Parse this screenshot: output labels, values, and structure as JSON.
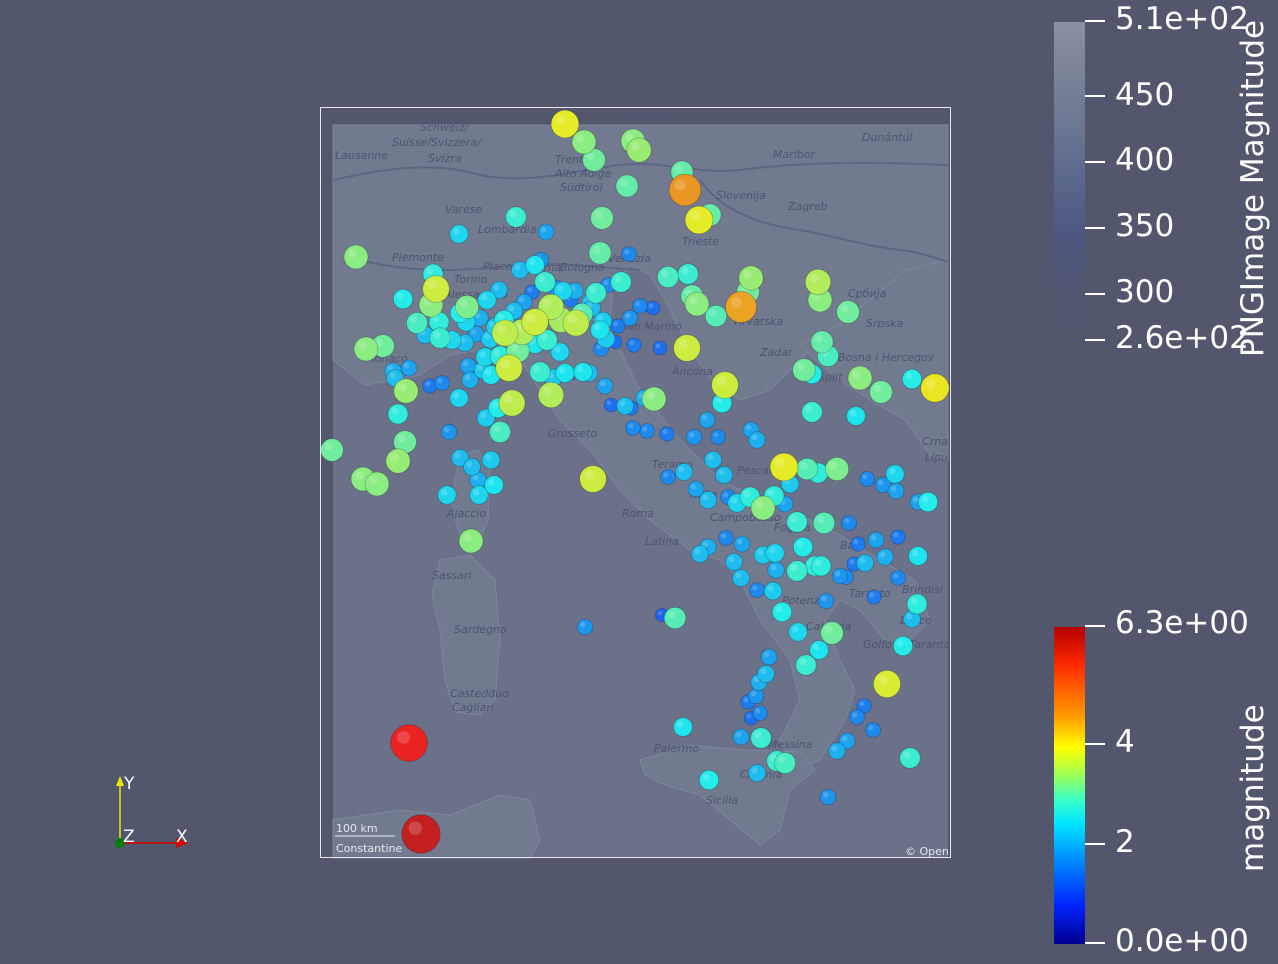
{
  "map": {
    "place_labels": [
      "Schweiz/",
      "Suisse/Svizzera/",
      "Svizra",
      "Lausanne",
      "Trento",
      "Südtirol",
      "Alto Adige",
      "Varese",
      "Lombardia",
      "Piemonte",
      "Torino",
      "Piacenza",
      "Parma",
      "Bologna",
      "Venezia",
      "Trieste",
      "Slovenija",
      "Zagreb",
      "Maribor",
      "Dunántúl",
      "Kärnten",
      "Hrvatska",
      "Monaco",
      "Toscana",
      "Grosseto",
      "Zadar",
      "Split",
      "Bosna i Hercegov",
      "Ancona",
      "Srpska",
      "Србија",
      "Crna",
      "Lipu",
      "Ajaccio",
      "Roma",
      "Latina",
      "Campobasso",
      "Foggia",
      "Bari",
      "Brindisi",
      "Taranto",
      "Lecce",
      "Sassari",
      "Sardegna",
      "Potenza",
      "Calabria",
      "Castedduo",
      "Cagliari",
      "Palermo",
      "Messina",
      "Catania",
      "Sicilia",
      "Golfo di Taranto",
      "Teramo",
      "Italia",
      "Alessandria",
      "San Marino",
      "Pescara"
    ],
    "scale_label": "100 km",
    "attribution_left": "Constantine",
    "attribution_right": "© Open"
  },
  "image_colorbar": {
    "title": "PNGImage Magnitude",
    "ticks": [
      "5.1e+02",
      "450",
      "400",
      "350",
      "300",
      "2.6e+02"
    ]
  },
  "magnitude_colorbar": {
    "title": "magnitude",
    "ticks": [
      "6.3e+00",
      "4",
      "2",
      "0.0e+00"
    ]
  },
  "axes_widget": {
    "x_label": "X",
    "y_label": "Y",
    "z_label": "Z"
  },
  "quakes": [
    [
      565,
      124,
      3.9
    ],
    [
      584,
      142,
      3.2
    ],
    [
      594,
      160,
      3.0
    ],
    [
      633,
      141,
      3.2
    ],
    [
      639,
      150,
      3.3
    ],
    [
      627,
      186,
      2.9
    ],
    [
      682,
      172,
      2.9
    ],
    [
      685,
      190,
      4.6
    ],
    [
      699,
      220,
      3.9
    ],
    [
      710,
      215,
      2.9
    ],
    [
      602,
      218,
      3.0
    ],
    [
      516,
      217,
      2.6
    ],
    [
      546,
      232,
      1.8
    ],
    [
      459,
      234,
      2.2
    ],
    [
      356,
      257,
      3.2
    ],
    [
      600,
      253,
      2.9
    ],
    [
      629,
      254,
      1.6
    ],
    [
      668,
      277,
      2.7
    ],
    [
      688,
      274,
      2.6
    ],
    [
      751,
      278,
      3.3
    ],
    [
      748,
      292,
      3.0
    ],
    [
      818,
      282,
      3.5
    ],
    [
      820,
      300,
      3.2
    ],
    [
      848,
      312,
      3.0
    ],
    [
      741,
      307,
      4.5
    ],
    [
      716,
      316,
      2.8
    ],
    [
      697,
      304,
      3.2
    ],
    [
      692,
      296,
      2.9
    ],
    [
      433,
      274,
      2.5
    ],
    [
      436,
      289,
      3.7
    ],
    [
      431,
      305,
      3.2
    ],
    [
      403,
      299,
      2.4
    ],
    [
      417,
      323,
      2.7
    ],
    [
      439,
      322,
      2.5
    ],
    [
      460,
      313,
      2.4
    ],
    [
      467,
      307,
      3.1
    ],
    [
      487,
      300,
      2.2
    ],
    [
      499,
      290,
      2.0
    ],
    [
      520,
      270,
      2.0
    ],
    [
      535,
      265,
      2.3
    ],
    [
      541,
      260,
      1.7
    ],
    [
      545,
      282,
      2.6
    ],
    [
      563,
      291,
      2.2
    ],
    [
      575,
      291,
      1.9
    ],
    [
      596,
      293,
      2.6
    ],
    [
      621,
      282,
      2.6
    ],
    [
      608,
      285,
      1.6
    ],
    [
      640,
      306,
      1.6
    ],
    [
      653,
      308,
      1.4
    ],
    [
      630,
      318,
      1.7
    ],
    [
      618,
      326,
      1.5
    ],
    [
      603,
      321,
      2.1
    ],
    [
      590,
      303,
      2.0
    ],
    [
      576,
      323,
      3.6
    ],
    [
      561,
      320,
      3.4
    ],
    [
      551,
      307,
      3.5
    ],
    [
      535,
      322,
      3.7
    ],
    [
      522,
      332,
      3.5
    ],
    [
      505,
      333,
      3.6
    ],
    [
      490,
      339,
      2.1
    ],
    [
      476,
      334,
      1.8
    ],
    [
      465,
      343,
      2.0
    ],
    [
      452,
      340,
      2.2
    ],
    [
      440,
      338,
      2.6
    ],
    [
      425,
      335,
      2.0
    ],
    [
      383,
      346,
      3.0
    ],
    [
      366,
      349,
      3.2
    ],
    [
      409,
      368,
      1.8
    ],
    [
      395,
      378,
      2.0
    ],
    [
      393,
      371,
      1.9
    ],
    [
      406,
      391,
      3.3
    ],
    [
      430,
      386,
      1.5
    ],
    [
      442,
      383,
      1.6
    ],
    [
      459,
      398,
      2.2
    ],
    [
      470,
      380,
      1.9
    ],
    [
      483,
      370,
      2.1
    ],
    [
      491,
      375,
      2.3
    ],
    [
      509,
      368,
      3.7
    ],
    [
      512,
      403,
      3.6
    ],
    [
      498,
      408,
      2.4
    ],
    [
      500,
      432,
      2.7
    ],
    [
      486,
      418,
      2.1
    ],
    [
      468,
      366,
      1.8
    ],
    [
      485,
      357,
      2.2
    ],
    [
      500,
      356,
      2.5
    ],
    [
      518,
      351,
      3.0
    ],
    [
      535,
      344,
      2.3
    ],
    [
      547,
      340,
      2.6
    ],
    [
      560,
      352,
      2.2
    ],
    [
      540,
      372,
      2.6
    ],
    [
      553,
      378,
      2.1
    ],
    [
      565,
      373,
      2.3
    ],
    [
      583,
      372,
      2.3
    ],
    [
      551,
      395,
      3.5
    ],
    [
      601,
      349,
      1.6
    ],
    [
      606,
      339,
      2.1
    ],
    [
      600,
      330,
      2.3
    ],
    [
      615,
      342,
      1.4
    ],
    [
      634,
      345,
      1.5
    ],
    [
      660,
      348,
      1.4
    ],
    [
      687,
      348,
      3.7
    ],
    [
      725,
      385,
      3.7
    ],
    [
      722,
      403,
      2.4
    ],
    [
      707,
      420,
      1.8
    ],
    [
      718,
      437,
      1.6
    ],
    [
      757,
      440,
      1.9
    ],
    [
      751,
      430,
      1.8
    ],
    [
      784,
      467,
      3.9
    ],
    [
      807,
      469,
      2.8
    ],
    [
      837,
      469,
      3.1
    ],
    [
      818,
      473,
      2.5
    ],
    [
      804,
      370,
      3.0
    ],
    [
      812,
      374,
      2.4
    ],
    [
      828,
      356,
      2.7
    ],
    [
      822,
      342,
      2.9
    ],
    [
      860,
      378,
      3.2
    ],
    [
      881,
      392,
      3.0
    ],
    [
      912,
      379,
      2.4
    ],
    [
      935,
      388,
      4.0
    ],
    [
      812,
      412,
      2.6
    ],
    [
      856,
      416,
      2.3
    ],
    [
      654,
      399,
      3.2
    ],
    [
      644,
      398,
      1.9
    ],
    [
      631,
      408,
      1.5
    ],
    [
      625,
      406,
      2.0
    ],
    [
      611,
      405,
      1.4
    ],
    [
      605,
      386,
      1.8
    ],
    [
      589,
      373,
      2.0
    ],
    [
      647,
      431,
      1.6
    ],
    [
      633,
      428,
      1.6
    ],
    [
      667,
      434,
      1.5
    ],
    [
      694,
      437,
      1.7
    ],
    [
      713,
      460,
      2.0
    ],
    [
      724,
      475,
      2.0
    ],
    [
      684,
      472,
      2.0
    ],
    [
      668,
      477,
      1.6
    ],
    [
      696,
      489,
      1.8
    ],
    [
      708,
      500,
      2.0
    ],
    [
      728,
      497,
      1.6
    ],
    [
      737,
      503,
      2.2
    ],
    [
      750,
      497,
      2.5
    ],
    [
      763,
      508,
      3.2
    ],
    [
      774,
      496,
      2.5
    ],
    [
      785,
      504,
      1.8
    ],
    [
      797,
      522,
      2.6
    ],
    [
      824,
      523,
      2.8
    ],
    [
      790,
      484,
      2.1
    ],
    [
      803,
      547,
      2.4
    ],
    [
      815,
      566,
      2.5
    ],
    [
      821,
      566,
      2.5
    ],
    [
      797,
      571,
      2.6
    ],
    [
      775,
      553,
      2.2
    ],
    [
      776,
      570,
      1.9
    ],
    [
      763,
      555,
      2.1
    ],
    [
      742,
      544,
      1.8
    ],
    [
      726,
      538,
      1.6
    ],
    [
      708,
      547,
      1.9
    ],
    [
      700,
      554,
      2.0
    ],
    [
      734,
      562,
      2.0
    ],
    [
      741,
      578,
      2.0
    ],
    [
      757,
      590,
      1.6
    ],
    [
      773,
      591,
      2.1
    ],
    [
      782,
      612,
      2.4
    ],
    [
      826,
      601,
      1.7
    ],
    [
      840,
      576,
      1.7
    ],
    [
      854,
      564,
      1.5
    ],
    [
      865,
      563,
      2.0
    ],
    [
      885,
      557,
      1.9
    ],
    [
      918,
      556,
      2.3
    ],
    [
      917,
      604,
      2.5
    ],
    [
      912,
      619,
      2.0
    ],
    [
      903,
      646,
      2.4
    ],
    [
      887,
      684,
      3.8
    ],
    [
      832,
      633,
      3.0
    ],
    [
      798,
      632,
      2.2
    ],
    [
      806,
      665,
      2.6
    ],
    [
      819,
      650,
      2.3
    ],
    [
      769,
      657,
      1.8
    ],
    [
      766,
      674,
      2.0
    ],
    [
      759,
      682,
      1.9
    ],
    [
      756,
      696,
      1.7
    ],
    [
      748,
      702,
      1.5
    ],
    [
      760,
      713,
      1.6
    ],
    [
      751,
      718,
      1.4
    ],
    [
      741,
      737,
      1.8
    ],
    [
      761,
      738,
      2.6
    ],
    [
      785,
      763,
      2.7
    ],
    [
      777,
      761,
      2.6
    ],
    [
      757,
      773,
      2.0
    ],
    [
      709,
      780,
      2.4
    ],
    [
      683,
      727,
      2.3
    ],
    [
      828,
      797,
      1.7
    ],
    [
      837,
      751,
      1.9
    ],
    [
      847,
      741,
      1.8
    ],
    [
      857,
      717,
      1.6
    ],
    [
      873,
      730,
      1.6
    ],
    [
      864,
      706,
      1.5
    ],
    [
      910,
      758,
      2.6
    ],
    [
      918,
      502,
      1.8
    ],
    [
      928,
      502,
      2.4
    ],
    [
      896,
      491,
      1.8
    ],
    [
      895,
      474,
      2.2
    ],
    [
      867,
      479,
      1.6
    ],
    [
      883,
      485,
      1.7
    ],
    [
      876,
      540,
      1.8
    ],
    [
      898,
      537,
      1.5
    ],
    [
      858,
      544,
      1.5
    ],
    [
      846,
      577,
      1.6
    ],
    [
      874,
      597,
      1.5
    ],
    [
      898,
      578,
      1.6
    ],
    [
      849,
      523,
      1.6
    ],
    [
      332,
      450,
      3.0
    ],
    [
      363,
      479,
      3.2
    ],
    [
      377,
      484,
      3.2
    ],
    [
      398,
      461,
      3.3
    ],
    [
      405,
      442,
      3.0
    ],
    [
      398,
      414,
      2.5
    ],
    [
      449,
      432,
      1.7
    ],
    [
      460,
      458,
      2.0
    ],
    [
      472,
      467,
      2.0
    ],
    [
      491,
      460,
      2.1
    ],
    [
      478,
      480,
      1.9
    ],
    [
      494,
      485,
      2.3
    ],
    [
      479,
      495,
      2.2
    ],
    [
      447,
      495,
      2.2
    ],
    [
      471,
      541,
      3.2
    ],
    [
      593,
      479,
      3.7
    ],
    [
      675,
      618,
      2.8
    ],
    [
      662,
      615,
      1.3
    ],
    [
      585,
      627,
      1.7
    ],
    [
      409,
      743,
      5.5
    ],
    [
      421,
      834,
      5.8
    ],
    [
      592,
      308,
      2.0
    ],
    [
      582,
      314,
      2.8
    ],
    [
      571,
      300,
      1.5
    ],
    [
      556,
      288,
      1.7
    ],
    [
      532,
      292,
      1.5
    ],
    [
      524,
      302,
      1.8
    ],
    [
      514,
      311,
      2.0
    ],
    [
      504,
      320,
      2.4
    ],
    [
      495,
      327,
      2.1
    ],
    [
      480,
      318,
      1.9
    ],
    [
      466,
      322,
      2.2
    ]
  ]
}
